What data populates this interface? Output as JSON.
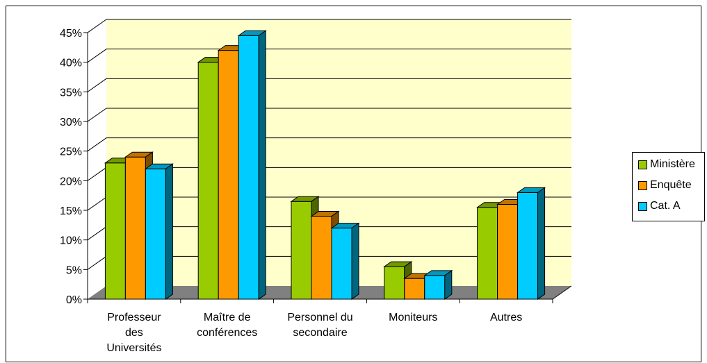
{
  "chart_data": {
    "type": "bar",
    "title": "",
    "xlabel": "",
    "ylabel": "",
    "categories": [
      [
        "Professeur",
        "des",
        "Universités"
      ],
      [
        "Maître de",
        "conférences"
      ],
      [
        "Personnel du",
        "secondaire"
      ],
      [
        "Moniteurs"
      ],
      [
        "Autres"
      ]
    ],
    "series": [
      {
        "name": "Ministère",
        "color": "#99cc00",
        "values": [
          23,
          40,
          16.5,
          5.5,
          15.5
        ]
      },
      {
        "name": "Enquête",
        "color": "#ff9900",
        "values": [
          24,
          42,
          14,
          3.5,
          16
        ]
      },
      {
        "name": "Cat. A",
        "color": "#00ccff",
        "values": [
          22,
          44.5,
          12,
          4,
          18
        ]
      }
    ],
    "ylim": [
      0,
      45
    ],
    "yticks": [
      "0%",
      "5%",
      "10%",
      "15%",
      "20%",
      "25%",
      "30%",
      "35%",
      "40%",
      "45%"
    ],
    "grid": true,
    "legend_position": "right",
    "wall_color": "#ffffcc",
    "floor_color": "#808080"
  }
}
